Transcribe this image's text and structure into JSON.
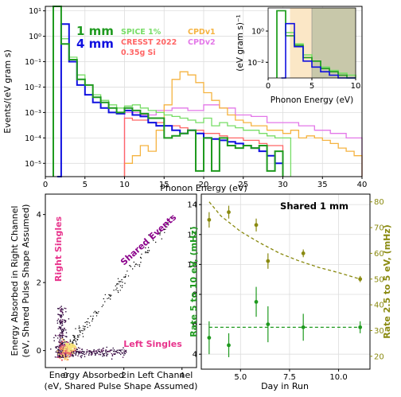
{
  "colors": {
    "mm1": "#1f9a1f",
    "mm4": "#1010e0",
    "spice": "#77dd66",
    "cresst": "#ff6666",
    "cpdv1": "#f5b340",
    "cpdv2": "#e377e8",
    "olive": "#8a8a10",
    "pink": "#e8358d",
    "purple": "#8b008b",
    "inset_band_orange": "#fbe7c6",
    "inset_band_olive": "#c8c8aa",
    "grid": "#dddddd"
  },
  "chart_data": [
    {
      "id": "main",
      "type": "line",
      "xlabel": "Phonon Energy (eV)",
      "ylabel": "Events/(eV gram s)",
      "xlim": [
        0,
        40
      ],
      "ylim": [
        3e-06,
        15
      ],
      "yscale": "log",
      "xticks": [
        0,
        5,
        10,
        15,
        20,
        25,
        30,
        35,
        40
      ],
      "yticks": [
        {
          "v": 1e-05,
          "label": "10⁻⁵"
        },
        {
          "v": 0.0001,
          "label": "10⁻⁴"
        },
        {
          "v": 0.001,
          "label": "10⁻³"
        },
        {
          "v": 0.01,
          "label": "10⁻²"
        },
        {
          "v": 0.1,
          "label": "10⁻¹"
        },
        {
          "v": 1,
          "label": "10⁰"
        },
        {
          "v": 10,
          "label": "10¹"
        }
      ],
      "legend_labels": {
        "mm1": "1 mm",
        "mm4": "4 mm",
        "spice": "SPICE 1%",
        "cresst": "CRESST 2022",
        "cresst_sub": "0.35g Si",
        "cpdv1": "CPDv1",
        "cpdv2": "CPDv2"
      },
      "series": [
        {
          "name": "1 mm",
          "color_key": "mm1",
          "width": 2,
          "edges": [
            1,
            2,
            3,
            4,
            5,
            6,
            7,
            8,
            9,
            10,
            11,
            12,
            13,
            14,
            15,
            16,
            17,
            18,
            19,
            20,
            21,
            22,
            23,
            24,
            25,
            26,
            27,
            28,
            29,
            30
          ],
          "values": [
            20,
            0.5,
            0.12,
            0.02,
            0.012,
            0.004,
            0.0025,
            0.0015,
            0.001,
            0.0015,
            0.0012,
            0.0009,
            0.0006,
            0.0006,
            0.0001,
            0.00012,
            0.00015,
            0.0002,
            5e-06,
            0.0001,
            5e-06,
            0.0001,
            5e-05,
            4e-05,
            5e-05,
            4e-05,
            5e-05,
            5e-06,
            3e-05
          ]
        },
        {
          "name": "4 mm",
          "color_key": "mm4",
          "width": 2,
          "edges": [
            1.5,
            2,
            3,
            4,
            5,
            6,
            7,
            8,
            9,
            10,
            11,
            12,
            13,
            14,
            15,
            16,
            17,
            18,
            19,
            20,
            21,
            22,
            23,
            24,
            25,
            26,
            27,
            28,
            29,
            30
          ],
          "values": [
            1e-06,
            3,
            0.1,
            0.012,
            0.005,
            0.0025,
            0.0015,
            0.001,
            0.0009,
            0.0012,
            0.0008,
            0.0007,
            0.0004,
            0.0003,
            0.0003,
            0.0002,
            0.00015,
            0.0002,
            0.00015,
            0.0001,
            9e-05,
            8e-05,
            7e-05,
            6e-05,
            5e-05,
            4e-05,
            3e-05,
            2e-05,
            1e-05
          ]
        },
        {
          "name": "SPICE 1%",
          "color_key": "spice",
          "width": 1.3,
          "edges": [
            1,
            2,
            3,
            4,
            5,
            6,
            7,
            8,
            9,
            10,
            11,
            12,
            13,
            14,
            15,
            16,
            17,
            18,
            19,
            20,
            21,
            22,
            23,
            24,
            25,
            26,
            27,
            28,
            29,
            30,
            31
          ],
          "values": [
            20,
            0.8,
            0.15,
            0.03,
            0.012,
            0.005,
            0.003,
            0.002,
            0.0015,
            0.0018,
            0.002,
            0.0015,
            0.0012,
            0.001,
            0.0008,
            0.0007,
            0.0006,
            0.0005,
            0.0004,
            0.0006,
            0.0003,
            0.0004,
            0.0003,
            0.00025,
            0.0002,
            0.0002,
            0.00015,
            0.00012,
            0.0001,
            0.0001
          ]
        },
        {
          "name": "CRESST 2022",
          "color_key": "cresst",
          "width": 1.3,
          "edges": [
            10,
            11,
            12,
            13,
            14,
            15,
            16,
            17,
            18,
            19,
            20,
            21,
            22,
            23,
            24,
            25,
            26,
            27,
            28,
            29,
            30
          ],
          "values": [
            0.0006,
            0.0005,
            0.0005,
            0.0004,
            0.0004,
            0.0003,
            0.0003,
            0.00025,
            0.0002,
            0.0002,
            0.00015,
            0.00015,
            0.00012,
            0.0001,
            0.0001,
            8e-05,
            8e-05,
            6e-05,
            5e-05,
            5e-05
          ]
        },
        {
          "name": "CPDv1",
          "color_key": "cpdv1",
          "width": 1.3,
          "edges": [
            10,
            11,
            12,
            13,
            14,
            15,
            16,
            17,
            18,
            19,
            20,
            21,
            22,
            23,
            24,
            25,
            26,
            27,
            28,
            29,
            30,
            31,
            32,
            33,
            34,
            35,
            36,
            37,
            38,
            39,
            40
          ],
          "values": [
            1e-05,
            2e-05,
            5e-05,
            3e-05,
            0.0002,
            0.002,
            0.02,
            0.04,
            0.03,
            0.015,
            0.006,
            0.003,
            0.0015,
            0.0008,
            0.0005,
            0.0004,
            0.0003,
            0.0003,
            0.0002,
            0.0002,
            0.00015,
            0.0002,
            0.0001,
            0.00012,
            0.0001,
            8e-05,
            6e-05,
            4e-05,
            3e-05,
            2e-05
          ]
        },
        {
          "name": "CPDv2",
          "color_key": "cpdv2",
          "width": 1.3,
          "edges": [
            10,
            12,
            14,
            16,
            18,
            20,
            22,
            24,
            26,
            28,
            30,
            32,
            34,
            36,
            38,
            40
          ],
          "values": [
            0.001,
            0.0008,
            0.0012,
            0.0015,
            0.0012,
            0.002,
            0.0015,
            0.0008,
            0.0007,
            0.0004,
            0.0004,
            0.0003,
            0.0002,
            0.00015,
            0.0001
          ]
        }
      ],
      "inset": {
        "xlabel": "Phonon Energy (eV)",
        "ylabel": "(eV gram s)⁻¹",
        "xlim": [
          0,
          10
        ],
        "ylim": [
          0.001,
          30
        ],
        "yscale": "log",
        "xticks": [
          0,
          5,
          10
        ],
        "yticks": [
          {
            "v": 1,
            "label": "10⁰"
          },
          {
            "v": 0.01,
            "label": "10⁻²"
          }
        ],
        "bands": [
          {
            "from": 2.5,
            "to": 5,
            "color_key": "inset_band_orange"
          },
          {
            "from": 5,
            "to": 10,
            "color_key": "inset_band_olive"
          }
        ]
      }
    },
    {
      "id": "scatter",
      "type": "scatter",
      "xlabel": "Energy Absorbed in Left Channel",
      "xlabel2": "(eV, Shared Pulse Shape Assumed)",
      "ylabel": "Energy Absorbed in Right Channel",
      "ylabel2": "(eV, Shared Pulse Shape Assumed)",
      "xlim": [
        -0.7,
        4.5
      ],
      "ylim": [
        -0.5,
        4.6
      ],
      "xticks": [
        0,
        2,
        4
      ],
      "yticks": [
        0,
        2,
        4
      ],
      "annotations": {
        "right": "Right Singles",
        "left": "Left Singles",
        "shared": "Shared Events"
      }
    },
    {
      "id": "rates",
      "type": "scatter",
      "title": "Shared 1 mm",
      "xlabel": "Day in Run",
      "ylabel_left": "Rate 5 to 10 eV, (mHz)",
      "ylabel_right": "Rate 2.5 to 5 eV, (mHz)",
      "xlim": [
        3,
        11.6
      ],
      "ylim_left": [
        3,
        14.7
      ],
      "ylim_right": [
        15,
        83
      ],
      "xticks": [
        5.0,
        7.5,
        10.0
      ],
      "xtick_labels": [
        "5.0",
        "7.5",
        "10.0"
      ],
      "yticks_left": [
        4,
        6,
        8,
        10,
        12,
        14
      ],
      "yticks_right": [
        20,
        30,
        40,
        50,
        60,
        70,
        80
      ],
      "series": [
        {
          "name": "5 to 10 eV",
          "axis": "left",
          "color_key": "mm1",
          "x": [
            3.4,
            4.4,
            5.8,
            6.4,
            8.2,
            11.1
          ],
          "y": [
            5.1,
            4.6,
            7.5,
            6.0,
            5.8,
            5.8
          ],
          "err": [
            1.1,
            0.8,
            1.0,
            1.2,
            0.9,
            0.4
          ],
          "fit": 5.8
        },
        {
          "name": "2.5 to 5 eV",
          "axis": "right",
          "color_key": "olive",
          "x": [
            3.4,
            4.4,
            5.8,
            6.4,
            8.2,
            11.1
          ],
          "y": [
            73,
            76,
            71,
            57,
            60,
            50
          ],
          "err": [
            3,
            2.5,
            2.5,
            3,
            1.5,
            1.2
          ],
          "fit_x": [
            3.4,
            4,
            5,
            6,
            7,
            8,
            9,
            10,
            11.1
          ],
          "fit_y": [
            80,
            74.5,
            68.5,
            64,
            60,
            57,
            54.5,
            52.5,
            50
          ]
        }
      ]
    }
  ]
}
